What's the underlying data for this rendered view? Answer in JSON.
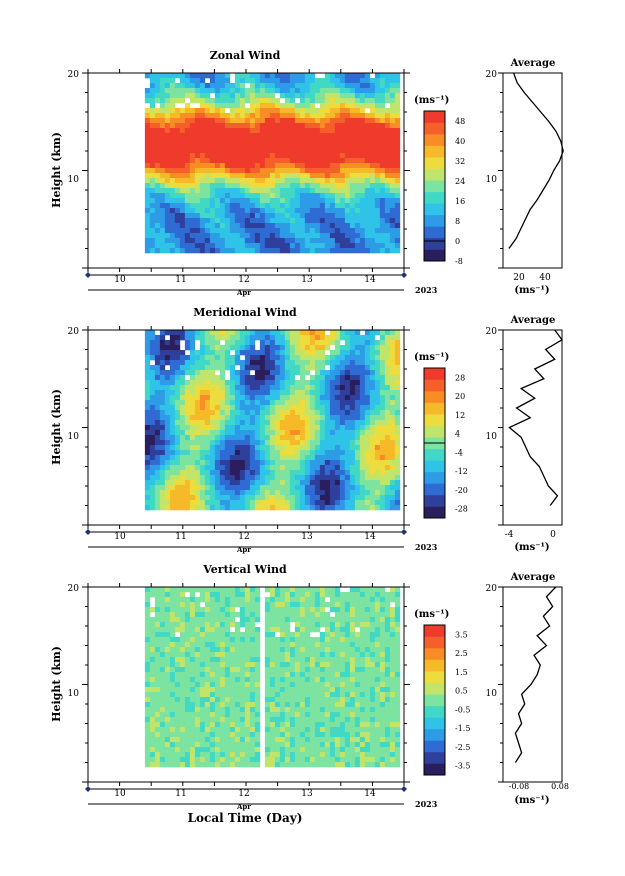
{
  "colors": {
    "palette": [
      "#2a1e5c",
      "#2f3f9c",
      "#2f6bd3",
      "#2e9be6",
      "#2fc3e8",
      "#41d9c6",
      "#7de3a0",
      "#c1e56b",
      "#eddc3d",
      "#f6b928",
      "#f88d26",
      "#f45f2a",
      "#ef3b2c"
    ]
  },
  "figure": {
    "xlabel": "Local Time (Day)"
  },
  "panels": [
    {
      "title": "Zonal Wind",
      "ylabel": "Height (km)",
      "yticks": [
        "20",
        "10"
      ],
      "xticks": [
        "10",
        "11",
        "12",
        "13",
        "14"
      ],
      "month": "Apr",
      "year": "2023",
      "cbar_unit": "(ms⁻¹)",
      "cbar_ticks": [
        "48",
        "40",
        "32",
        "24",
        "16",
        "8",
        "0",
        "-8"
      ],
      "avg_title": "Average",
      "avg_xticks": [
        "20",
        "40"
      ],
      "avg_xlabel": "(ms⁻¹)",
      "avg_yticks": [
        "20",
        "10"
      ]
    },
    {
      "title": "Meridional Wind",
      "ylabel": "Height (km)",
      "yticks": [
        "20",
        "10"
      ],
      "xticks": [
        "10",
        "11",
        "12",
        "13",
        "14"
      ],
      "month": "Apr",
      "year": "2023",
      "cbar_unit": "(ms⁻¹)",
      "cbar_ticks": [
        "28",
        "20",
        "12",
        "4",
        "-4",
        "-12",
        "-20",
        "-28"
      ],
      "avg_title": "Average",
      "avg_xticks": [
        "-4",
        "0"
      ],
      "avg_xlabel": "(ms⁻¹)",
      "avg_yticks": [
        "20",
        "10"
      ]
    },
    {
      "title": "Vertical Wind",
      "ylabel": "Height (km)",
      "yticks": [
        "20",
        "10"
      ],
      "xticks": [
        "10",
        "11",
        "12",
        "13",
        "14"
      ],
      "month": "Apr",
      "year": "2023",
      "cbar_unit": "(ms⁻¹)",
      "cbar_ticks": [
        "3.5",
        "2.5",
        "1.5",
        "0.5",
        "-0.5",
        "-1.5",
        "-2.5",
        "-3.5"
      ],
      "avg_title": "Average",
      "avg_xticks": [
        "-0.08",
        "0.08"
      ],
      "avg_xlabel": "(ms⁻¹)",
      "avg_yticks": [
        "20",
        "10"
      ]
    }
  ],
  "chart_data": [
    {
      "type": "heatmap",
      "title": "Zonal Wind",
      "ylabel": "Height (km)",
      "xlabel": "Local Time (Day)",
      "xlim": [
        9.5,
        14.5
      ],
      "xdata_range": [
        10.4,
        14.4
      ],
      "ylim": [
        0,
        20
      ],
      "ydata_range": [
        2.0,
        20.0
      ],
      "clim": [
        -8,
        52
      ],
      "colorbar_ticks": [
        48,
        40,
        32,
        24,
        16,
        8,
        0,
        -8
      ],
      "profile_heights_km": [
        2,
        3,
        4,
        5,
        6,
        7,
        8,
        9,
        10,
        11,
        12,
        13,
        14,
        15,
        16,
        17,
        18,
        19,
        20
      ],
      "profile_values": [
        10,
        16,
        20,
        24,
        28,
        34,
        39,
        44,
        48,
        53,
        56,
        54,
        50,
        44,
        37,
        30,
        23,
        17,
        14
      ],
      "profile_xlim": [
        5,
        55
      ]
    },
    {
      "type": "heatmap",
      "title": "Meridional Wind",
      "ylabel": "Height (km)",
      "xlabel": "Local Time (Day)",
      "xlim": [
        9.5,
        14.5
      ],
      "xdata_range": [
        10.4,
        14.4
      ],
      "ylim": [
        0,
        20
      ],
      "ydata_range": [
        2.0,
        20.0
      ],
      "clim": [
        -32,
        32
      ],
      "colorbar_ticks": [
        28,
        20,
        12,
        4,
        -4,
        -12,
        -20,
        -28
      ],
      "profile_heights_km": [
        2,
        3,
        4,
        5,
        6,
        7,
        8,
        9,
        10,
        11,
        12,
        13,
        14,
        15,
        16,
        17,
        18,
        19,
        20
      ],
      "profile_values": [
        -0.3,
        0.5,
        -0.5,
        -1.0,
        -1.5,
        -2.5,
        -3.0,
        -3.5,
        -4.8,
        -2.5,
        -4.0,
        -2.0,
        -3.5,
        -1.0,
        -2.0,
        0.2,
        -0.8,
        1.0,
        0.2
      ],
      "profile_xlim": [
        -5.5,
        1.0
      ]
    },
    {
      "type": "heatmap",
      "title": "Vertical Wind",
      "ylabel": "Height (km)",
      "xlabel": "Local Time (Day)",
      "xlim": [
        9.5,
        14.5
      ],
      "xdata_range": [
        10.4,
        14.4
      ],
      "ylim": [
        0,
        20
      ],
      "ydata_range": [
        2.0,
        20.0
      ],
      "clim": [
        -4,
        4
      ],
      "colorbar_ticks": [
        3.5,
        2.5,
        1.5,
        0.5,
        -0.5,
        -1.5,
        -2.5,
        -3.5
      ],
      "profile_heights_km": [
        2,
        3,
        4,
        5,
        6,
        7,
        8,
        9,
        10,
        11,
        12,
        13,
        14,
        15,
        16,
        17,
        18,
        19,
        20
      ],
      "profile_values": [
        -0.07,
        -0.05,
        -0.06,
        -0.07,
        -0.05,
        -0.06,
        -0.04,
        -0.05,
        -0.02,
        0.0,
        0.01,
        -0.01,
        0.03,
        0.0,
        0.04,
        0.02,
        0.05,
        0.03,
        0.06
      ],
      "profile_xlim": [
        -0.11,
        0.08
      ]
    }
  ]
}
